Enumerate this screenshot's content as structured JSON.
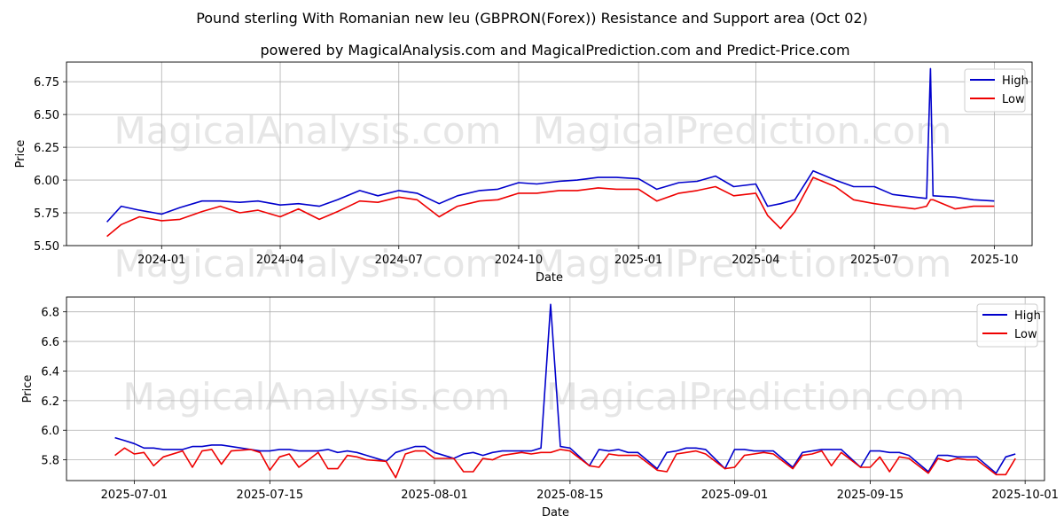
{
  "title": "Pound sterling With Romanian new leu (GBPRON(Forex)) Resistance and Support area (Oct 02)",
  "subtitle": "powered by MagicalAnalysis.com and MagicalPrediction.com and Predict-Price.com",
  "watermarks": [
    "MagicalAnalysis.com",
    "MagicalPrediction.com"
  ],
  "colors": {
    "high": "#0000cc",
    "low": "#ee0000",
    "grid": "#b0b0b0"
  },
  "chart_data": [
    {
      "type": "line",
      "xlabel": "Date",
      "ylabel": "Price",
      "ylim": [
        5.5,
        6.9
      ],
      "yticks": [
        5.5,
        5.75,
        6.0,
        6.25,
        6.5,
        6.75
      ],
      "ytick_labels": [
        "5.50",
        "5.75",
        "6.00",
        "6.25",
        "6.50",
        "6.75"
      ],
      "xtick_labels": [
        "2024-01",
        "2024-04",
        "2024-07",
        "2024-10",
        "2025-01",
        "2025-04",
        "2025-07",
        "2025-10"
      ],
      "grid": true,
      "legend": "top-right",
      "series": [
        {
          "name": "High",
          "x": [
            "2023-11-20",
            "2023-12-01",
            "2023-12-15",
            "2024-01-01",
            "2024-01-15",
            "2024-02-01",
            "2024-02-15",
            "2024-03-01",
            "2024-03-15",
            "2024-04-01",
            "2024-04-15",
            "2024-05-01",
            "2024-05-15",
            "2024-06-01",
            "2024-06-15",
            "2024-07-01",
            "2024-07-15",
            "2024-08-01",
            "2024-08-15",
            "2024-09-01",
            "2024-09-15",
            "2024-10-01",
            "2024-10-15",
            "2024-11-01",
            "2024-11-15",
            "2024-12-01",
            "2024-12-15",
            "2025-01-01",
            "2025-01-15",
            "2025-02-01",
            "2025-02-15",
            "2025-03-01",
            "2025-03-15",
            "2025-04-01",
            "2025-04-10",
            "2025-04-20",
            "2025-05-01",
            "2025-05-15",
            "2025-06-01",
            "2025-06-15",
            "2025-07-01",
            "2025-07-15",
            "2025-08-01",
            "2025-08-10",
            "2025-08-13",
            "2025-08-15",
            "2025-09-01",
            "2025-09-15",
            "2025-10-01"
          ],
          "y": [
            5.68,
            5.8,
            5.77,
            5.74,
            5.79,
            5.84,
            5.84,
            5.83,
            5.84,
            5.81,
            5.82,
            5.8,
            5.85,
            5.92,
            5.88,
            5.92,
            5.9,
            5.82,
            5.88,
            5.92,
            5.93,
            5.98,
            5.97,
            5.99,
            6.0,
            6.02,
            6.02,
            6.01,
            5.93,
            5.98,
            5.99,
            6.03,
            5.95,
            5.97,
            5.8,
            5.82,
            5.85,
            6.07,
            6.0,
            5.95,
            5.95,
            5.89,
            5.87,
            5.86,
            6.85,
            5.88,
            5.87,
            5.85,
            5.84
          ]
        },
        {
          "name": "Low",
          "x": [
            "2023-11-20",
            "2023-12-01",
            "2023-12-15",
            "2024-01-01",
            "2024-01-15",
            "2024-02-01",
            "2024-02-15",
            "2024-03-01",
            "2024-03-15",
            "2024-04-01",
            "2024-04-15",
            "2024-05-01",
            "2024-05-15",
            "2024-06-01",
            "2024-06-15",
            "2024-07-01",
            "2024-07-15",
            "2024-08-01",
            "2024-08-15",
            "2024-09-01",
            "2024-09-15",
            "2024-10-01",
            "2024-10-15",
            "2024-11-01",
            "2024-11-15",
            "2024-12-01",
            "2024-12-15",
            "2025-01-01",
            "2025-01-15",
            "2025-02-01",
            "2025-02-15",
            "2025-03-01",
            "2025-03-15",
            "2025-04-01",
            "2025-04-10",
            "2025-04-20",
            "2025-05-01",
            "2025-05-15",
            "2025-06-01",
            "2025-06-15",
            "2025-07-01",
            "2025-07-15",
            "2025-08-01",
            "2025-08-10",
            "2025-08-13",
            "2025-08-15",
            "2025-09-01",
            "2025-09-15",
            "2025-10-01"
          ],
          "y": [
            5.57,
            5.66,
            5.72,
            5.69,
            5.7,
            5.76,
            5.8,
            5.75,
            5.77,
            5.72,
            5.78,
            5.7,
            5.76,
            5.84,
            5.83,
            5.87,
            5.85,
            5.72,
            5.8,
            5.84,
            5.85,
            5.9,
            5.9,
            5.92,
            5.92,
            5.94,
            5.93,
            5.93,
            5.84,
            5.9,
            5.92,
            5.95,
            5.88,
            5.9,
            5.73,
            5.63,
            5.76,
            6.02,
            5.95,
            5.85,
            5.82,
            5.8,
            5.78,
            5.8,
            5.85,
            5.85,
            5.78,
            5.8,
            5.8
          ]
        }
      ]
    },
    {
      "type": "line",
      "xlabel": "Date",
      "ylabel": "Price",
      "ylim": [
        5.66,
        6.9
      ],
      "yticks": [
        5.8,
        6.0,
        6.2,
        6.4,
        6.6,
        6.8
      ],
      "ytick_labels": [
        "5.8",
        "6.0",
        "6.2",
        "6.4",
        "6.6",
        "6.8"
      ],
      "xtick_labels": [
        "2025-07-01",
        "2025-07-15",
        "2025-08-01",
        "2025-08-15",
        "2025-09-01",
        "2025-09-15",
        "2025-10-01"
      ],
      "grid": true,
      "legend": "top-right",
      "series": [
        {
          "name": "High",
          "x": [
            "2025-06-29",
            "2025-06-30",
            "2025-07-01",
            "2025-07-02",
            "2025-07-03",
            "2025-07-04",
            "2025-07-06",
            "2025-07-07",
            "2025-07-08",
            "2025-07-09",
            "2025-07-10",
            "2025-07-11",
            "2025-07-13",
            "2025-07-14",
            "2025-07-15",
            "2025-07-16",
            "2025-07-17",
            "2025-07-18",
            "2025-07-20",
            "2025-07-21",
            "2025-07-22",
            "2025-07-23",
            "2025-07-24",
            "2025-07-25",
            "2025-07-27",
            "2025-07-28",
            "2025-07-29",
            "2025-07-30",
            "2025-07-31",
            "2025-08-01",
            "2025-08-03",
            "2025-08-04",
            "2025-08-05",
            "2025-08-06",
            "2025-08-07",
            "2025-08-08",
            "2025-08-10",
            "2025-08-11",
            "2025-08-12",
            "2025-08-13",
            "2025-08-14",
            "2025-08-15",
            "2025-08-17",
            "2025-08-18",
            "2025-08-19",
            "2025-08-20",
            "2025-08-21",
            "2025-08-22",
            "2025-08-24",
            "2025-08-25",
            "2025-08-26",
            "2025-08-27",
            "2025-08-28",
            "2025-08-29",
            "2025-08-31",
            "2025-09-01",
            "2025-09-02",
            "2025-09-03",
            "2025-09-04",
            "2025-09-05",
            "2025-09-07",
            "2025-09-08",
            "2025-09-09",
            "2025-09-10",
            "2025-09-11",
            "2025-09-12",
            "2025-09-14",
            "2025-09-15",
            "2025-09-16",
            "2025-09-17",
            "2025-09-18",
            "2025-09-19",
            "2025-09-21",
            "2025-09-22",
            "2025-09-23",
            "2025-09-24",
            "2025-09-25",
            "2025-09-26",
            "2025-09-28",
            "2025-09-29",
            "2025-09-30"
          ],
          "y": [
            5.95,
            5.93,
            5.91,
            5.88,
            5.88,
            5.87,
            5.87,
            5.89,
            5.89,
            5.9,
            5.9,
            5.89,
            5.87,
            5.86,
            5.86,
            5.87,
            5.87,
            5.86,
            5.86,
            5.87,
            5.85,
            5.86,
            5.85,
            5.83,
            5.79,
            5.85,
            5.87,
            5.89,
            5.89,
            5.85,
            5.81,
            5.84,
            5.85,
            5.83,
            5.85,
            5.86,
            5.86,
            5.86,
            5.88,
            6.85,
            5.89,
            5.88,
            5.76,
            5.87,
            5.86,
            5.87,
            5.85,
            5.85,
            5.74,
            5.85,
            5.86,
            5.88,
            5.88,
            5.87,
            5.74,
            5.87,
            5.87,
            5.86,
            5.86,
            5.86,
            5.75,
            5.85,
            5.86,
            5.87,
            5.87,
            5.87,
            5.75,
            5.86,
            5.86,
            5.85,
            5.85,
            5.83,
            5.72,
            5.83,
            5.83,
            5.82,
            5.82,
            5.82,
            5.71,
            5.82,
            5.84
          ]
        },
        {
          "name": "Low",
          "x": [
            "2025-06-29",
            "2025-06-30",
            "2025-07-01",
            "2025-07-02",
            "2025-07-03",
            "2025-07-04",
            "2025-07-06",
            "2025-07-07",
            "2025-07-08",
            "2025-07-09",
            "2025-07-10",
            "2025-07-11",
            "2025-07-13",
            "2025-07-14",
            "2025-07-15",
            "2025-07-16",
            "2025-07-17",
            "2025-07-18",
            "2025-07-20",
            "2025-07-21",
            "2025-07-22",
            "2025-07-23",
            "2025-07-24",
            "2025-07-25",
            "2025-07-27",
            "2025-07-28",
            "2025-07-29",
            "2025-07-30",
            "2025-07-31",
            "2025-08-01",
            "2025-08-03",
            "2025-08-04",
            "2025-08-05",
            "2025-08-06",
            "2025-08-07",
            "2025-08-08",
            "2025-08-10",
            "2025-08-11",
            "2025-08-12",
            "2025-08-13",
            "2025-08-14",
            "2025-08-15",
            "2025-08-17",
            "2025-08-18",
            "2025-08-19",
            "2025-08-20",
            "2025-08-21",
            "2025-08-22",
            "2025-08-24",
            "2025-08-25",
            "2025-08-26",
            "2025-08-27",
            "2025-08-28",
            "2025-08-29",
            "2025-08-31",
            "2025-09-01",
            "2025-09-02",
            "2025-09-03",
            "2025-09-04",
            "2025-09-05",
            "2025-09-07",
            "2025-09-08",
            "2025-09-09",
            "2025-09-10",
            "2025-09-11",
            "2025-09-12",
            "2025-09-14",
            "2025-09-15",
            "2025-09-16",
            "2025-09-17",
            "2025-09-18",
            "2025-09-19",
            "2025-09-21",
            "2025-09-22",
            "2025-09-23",
            "2025-09-24",
            "2025-09-25",
            "2025-09-26",
            "2025-09-28",
            "2025-09-29",
            "2025-09-30"
          ],
          "y": [
            5.83,
            5.88,
            5.84,
            5.85,
            5.76,
            5.82,
            5.86,
            5.75,
            5.86,
            5.87,
            5.77,
            5.86,
            5.87,
            5.85,
            5.73,
            5.82,
            5.84,
            5.75,
            5.85,
            5.74,
            5.74,
            5.83,
            5.82,
            5.8,
            5.79,
            5.68,
            5.84,
            5.86,
            5.86,
            5.81,
            5.81,
            5.72,
            5.72,
            5.81,
            5.8,
            5.83,
            5.85,
            5.84,
            5.85,
            5.85,
            5.87,
            5.86,
            5.76,
            5.75,
            5.84,
            5.83,
            5.83,
            5.83,
            5.73,
            5.72,
            5.84,
            5.85,
            5.86,
            5.84,
            5.74,
            5.75,
            5.83,
            5.84,
            5.85,
            5.84,
            5.74,
            5.83,
            5.84,
            5.86,
            5.76,
            5.85,
            5.75,
            5.75,
            5.82,
            5.72,
            5.82,
            5.81,
            5.71,
            5.81,
            5.79,
            5.81,
            5.8,
            5.8,
            5.7,
            5.7,
            5.81
          ]
        }
      ]
    }
  ]
}
